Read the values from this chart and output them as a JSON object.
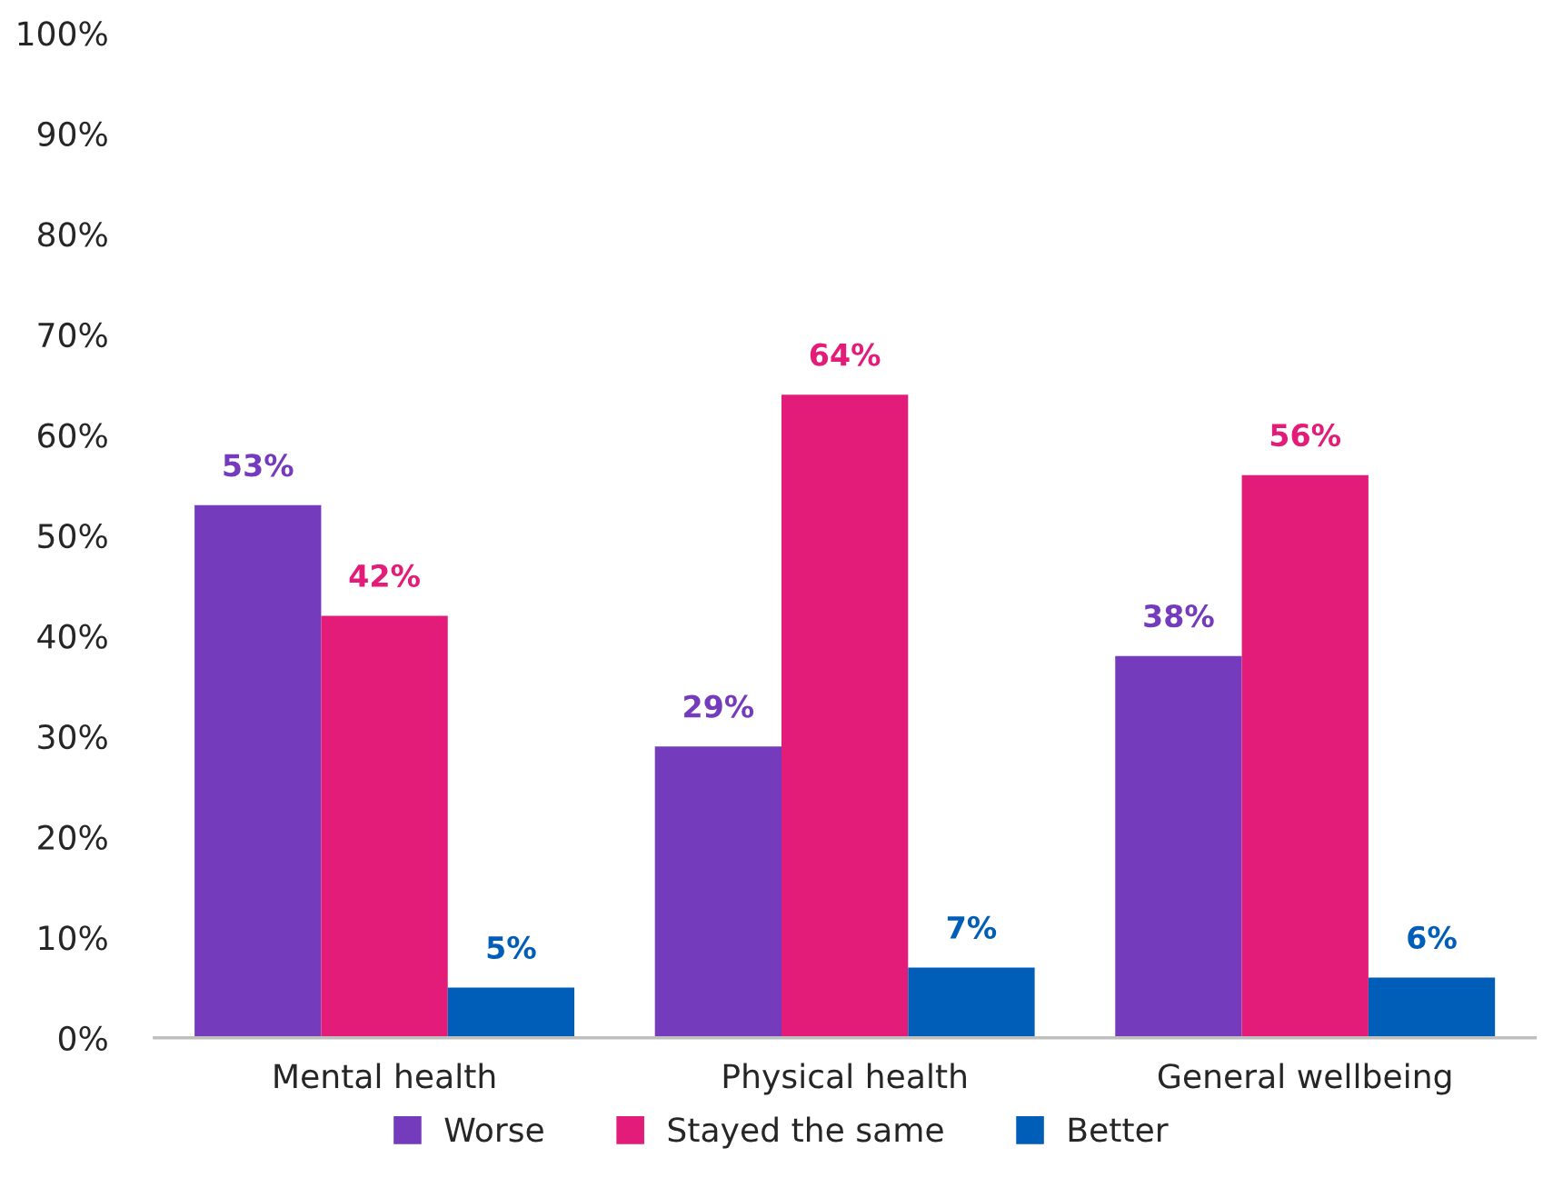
{
  "chart_data": {
    "type": "bar",
    "categories": [
      "Mental health",
      "Physical health",
      "General wellbeing"
    ],
    "series": [
      {
        "name": "Worse",
        "color": "#753bbd",
        "values": [
          53,
          29,
          38
        ],
        "value_labels": [
          "53%",
          "29%",
          "38%"
        ]
      },
      {
        "name": "Stayed the same",
        "color": "#e31c79",
        "values": [
          42,
          64,
          56
        ],
        "value_labels": [
          "42%",
          "64%",
          "56%"
        ]
      },
      {
        "name": "Better",
        "color": "#005eb8",
        "values": [
          5,
          7,
          6
        ],
        "value_labels": [
          "5%",
          "7%",
          "6%"
        ]
      }
    ],
    "ylim": [
      0,
      100
    ],
    "yticks": [
      {
        "value": 0,
        "label": "0%"
      },
      {
        "value": 10,
        "label": "10%"
      },
      {
        "value": 20,
        "label": "20%"
      },
      {
        "value": 30,
        "label": "30%"
      },
      {
        "value": 40,
        "label": "40%"
      },
      {
        "value": 50,
        "label": "50%"
      },
      {
        "value": 60,
        "label": "60%"
      },
      {
        "value": 70,
        "label": "70%"
      },
      {
        "value": 80,
        "label": "80%"
      },
      {
        "value": 90,
        "label": "90%"
      },
      {
        "value": 100,
        "label": "100%"
      }
    ],
    "legend": "bottom"
  }
}
